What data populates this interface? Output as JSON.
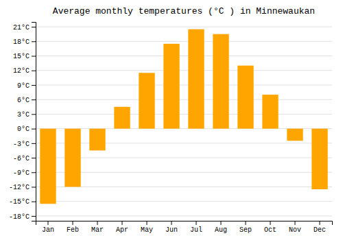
{
  "chart_data": {
    "type": "bar",
    "title": "Average monthly temperatures (°C ) in Minnewaukan",
    "categories": [
      "Jan",
      "Feb",
      "Mar",
      "Apr",
      "May",
      "Jun",
      "Jul",
      "Aug",
      "Sep",
      "Oct",
      "Nov",
      "Dec"
    ],
    "values": [
      -15.5,
      -12.0,
      -4.5,
      4.5,
      11.5,
      17.5,
      20.5,
      19.5,
      13.0,
      7.0,
      -2.5,
      -12.5
    ],
    "color": "#FFA500",
    "ylim": [
      -19,
      22
    ],
    "yticks": [
      {
        "value": -18,
        "label": "-18°C"
      },
      {
        "value": -15,
        "label": "-15°C"
      },
      {
        "value": -12,
        "label": "-12°C"
      },
      {
        "value": -9,
        "label": "-9°C"
      },
      {
        "value": -6,
        "label": "-6°C"
      },
      {
        "value": -3,
        "label": "-3°C"
      },
      {
        "value": 0,
        "label": "0°C"
      },
      {
        "value": 3,
        "label": "3°C"
      },
      {
        "value": 6,
        "label": "6°C"
      },
      {
        "value": 9,
        "label": "9°C"
      },
      {
        "value": 12,
        "label": "12°C"
      },
      {
        "value": 15,
        "label": "15°C"
      },
      {
        "value": 18,
        "label": "18°C"
      },
      {
        "value": 21,
        "label": "21°C"
      }
    ],
    "grid": true
  }
}
